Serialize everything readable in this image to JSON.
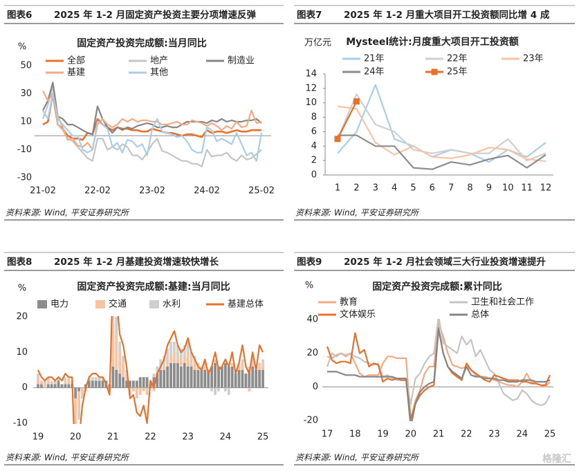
{
  "chart_data": [
    {
      "type": "line",
      "figure_label": "图表6",
      "title": "2025 年 1-2 月固定资产投资主要分项增速反弹",
      "subtitle": "固定资产投资完成额:当月同比",
      "y_unit": "%",
      "source": "资料来源: Wind, 平安证券研究所",
      "categories": [
        "21-02",
        null,
        null,
        null,
        null,
        null,
        null,
        null,
        null,
        null,
        null,
        "22-02",
        null,
        null,
        null,
        null,
        null,
        null,
        null,
        null,
        null,
        null,
        "23-02",
        null,
        null,
        null,
        null,
        null,
        null,
        null,
        null,
        null,
        null,
        "24-02",
        null,
        null,
        null,
        null,
        null,
        null,
        null,
        null,
        null,
        null,
        "25-02"
      ],
      "ylim": [
        -30,
        50
      ],
      "yticks": [
        -30,
        -10,
        10,
        30,
        50
      ],
      "series": [
        {
          "name": "全部",
          "color": "#e8702a",
          "values": [
            8,
            10,
            30,
            8,
            5,
            0,
            -2,
            -2,
            -3,
            2,
            1,
            12,
            8,
            6,
            4,
            6,
            5,
            5,
            4,
            4,
            3,
            3,
            5,
            4,
            3,
            2,
            2,
            1,
            0,
            1,
            1,
            0,
            -1,
            4,
            2,
            3,
            3,
            2,
            3,
            4,
            3,
            3,
            4,
            4,
            4
          ]
        },
        {
          "name": "地产",
          "color": "#c4c4c4",
          "values": [
            12,
            22,
            35,
            8,
            4,
            -2,
            -4,
            -8,
            -12,
            -16,
            -18,
            -2,
            -2,
            -10,
            -8,
            -10,
            -6,
            -8,
            -14,
            -14,
            -17,
            -12,
            -6,
            -2,
            -11,
            -12,
            -14,
            -16,
            -18,
            -18,
            -20,
            -20,
            -22,
            -10,
            -15,
            -14,
            -14,
            -12,
            -16,
            -18,
            -14,
            -17,
            -16,
            -13,
            -10
          ]
        },
        {
          "name": "制造业",
          "color": "#848484",
          "values": [
            18,
            25,
            38,
            14,
            12,
            8,
            8,
            6,
            4,
            2,
            1,
            21,
            12,
            6,
            2,
            6,
            4,
            6,
            5,
            7,
            8,
            9,
            8,
            6,
            6,
            7,
            6,
            6,
            8,
            10,
            10,
            10,
            10,
            9,
            11,
            10,
            12,
            10,
            11,
            10,
            10,
            11,
            11,
            12,
            9
          ]
        },
        {
          "name": "基建",
          "color": "#f4a983",
          "values": [
            32,
            25,
            30,
            14,
            6,
            -3,
            -2,
            -7,
            -8,
            -5,
            -10,
            8,
            12,
            8,
            6,
            8,
            12,
            10,
            12,
            10,
            11,
            11,
            10,
            10,
            8,
            8,
            9,
            10,
            8,
            8,
            11,
            10,
            9,
            7,
            9,
            7,
            4,
            7,
            5,
            10,
            6,
            7,
            18,
            9,
            10
          ]
        },
        {
          "name": "其他",
          "color": "#a9cde9",
          "values": [
            18,
            12,
            30,
            12,
            8,
            4,
            0,
            0,
            -10,
            -12,
            -10,
            10,
            8,
            5,
            -8,
            -5,
            -12,
            -3,
            -4,
            -8,
            -6,
            -14,
            5,
            12,
            3,
            2,
            1,
            -1,
            0,
            -4,
            -10,
            -12,
            -12,
            6,
            4,
            -4,
            -2,
            -4,
            -6,
            2,
            -6,
            -14,
            -12,
            -18,
            2
          ]
        }
      ]
    },
    {
      "type": "line",
      "figure_label": "图表7",
      "title": "2025 年 1-2 月重大项目开工投资额同比增 4 成",
      "subtitle": "Mysteel统计:月度重大项目开工投资额",
      "y_unit": "万亿元",
      "source": "资料来源: Wind, 平安证券研究所",
      "categories": [
        "1",
        "2",
        "3",
        "4",
        "5",
        "6",
        "7",
        "8",
        "9",
        "10",
        "11",
        "12"
      ],
      "ylim": [
        0,
        14
      ],
      "yticks": [
        0,
        2,
        4,
        6,
        8,
        10,
        12,
        14
      ],
      "series": [
        {
          "name": "21年",
          "color": "#a9cde9",
          "values": [
            3,
            6,
            12.5,
            5,
            4,
            2.5,
            3.5,
            3,
            1.8,
            3.5,
            2.5,
            4.5
          ]
        },
        {
          "name": "22年",
          "color": "#cfcfcf",
          "values": [
            5,
            11.2,
            7,
            6,
            3.5,
            3,
            3.5,
            3,
            3,
            5,
            2,
            3
          ]
        },
        {
          "name": "23年",
          "color": "#f7c3a3",
          "values": [
            9.5,
            9.2,
            4.5,
            2.8,
            4,
            2.5,
            2.3,
            2.8,
            3.8,
            3.5,
            2.2,
            1.9
          ]
        },
        {
          "name": "24年",
          "color": "#8c8c8c",
          "values": [
            5.5,
            5.5,
            4,
            4,
            1,
            0.8,
            1.8,
            1.4,
            2.2,
            2.7,
            1,
            2.8
          ]
        },
        {
          "name": "25年",
          "color": "#e8702a",
          "marker": "square",
          "values": [
            5,
            10.2,
            null,
            null,
            null,
            null,
            null,
            null,
            null,
            null,
            null,
            null
          ]
        }
      ]
    },
    {
      "type": "combo",
      "stacked": true,
      "figure_label": "图表8",
      "title": "2025 年 1-2 月基建投资增速较快增长",
      "subtitle": "固定资产投资完成额:基建:当月同比",
      "y_unit": "%",
      "source": "资料来源: Wind, 平安证券研究所",
      "categories": [
        "19",
        null,
        null,
        null,
        null,
        null,
        null,
        null,
        null,
        null,
        null,
        "20",
        null,
        null,
        null,
        null,
        null,
        null,
        null,
        null,
        null,
        null,
        "21",
        null,
        null,
        null,
        null,
        null,
        null,
        null,
        null,
        null,
        null,
        "22",
        null,
        null,
        null,
        null,
        null,
        null,
        null,
        null,
        null,
        null,
        "23",
        null,
        null,
        null,
        null,
        null,
        null,
        null,
        null,
        null,
        null,
        "24",
        null,
        null,
        null,
        null,
        null,
        null,
        null,
        null,
        null,
        null,
        "25"
      ],
      "ylim": [
        -10,
        20
      ],
      "yticks": [
        -10,
        0,
        10,
        20
      ],
      "series": [
        {
          "name": "电力",
          "type": "bar",
          "color": "#8c8c8c",
          "values": [
            1,
            1,
            0,
            1,
            1,
            1,
            2,
            1,
            1,
            1,
            1,
            -3,
            -1,
            0,
            1,
            2,
            2,
            2,
            2,
            2,
            2,
            1,
            6,
            5,
            4,
            3,
            2,
            2,
            2,
            2,
            3,
            3,
            3,
            1,
            3,
            4,
            5,
            5,
            6,
            7,
            7,
            7,
            6,
            7,
            6,
            6,
            5,
            5,
            5,
            5,
            5,
            6,
            7,
            6,
            6,
            7,
            6,
            6,
            4,
            5,
            5,
            4,
            5,
            6,
            5,
            5,
            5
          ]
        },
        {
          "name": "交通",
          "type": "bar",
          "color": "#f7c3a3",
          "values": [
            2,
            1,
            1,
            1,
            1,
            0,
            0,
            0,
            1,
            1,
            0,
            -8,
            -5,
            -2,
            -1,
            0,
            0,
            0,
            0,
            0,
            0,
            -1,
            12,
            10,
            6,
            4,
            2,
            -2,
            -1,
            -2,
            -2,
            -1,
            -2,
            0,
            -1,
            0,
            0,
            1,
            2,
            2,
            3,
            2,
            2,
            2,
            4,
            2,
            2,
            1,
            0,
            1,
            0,
            0,
            1,
            0,
            0,
            0,
            0,
            1,
            0,
            1,
            2,
            0,
            -1,
            1,
            0,
            1,
            2
          ]
        },
        {
          "name": "水利",
          "type": "bar",
          "color": "#cfcfcf",
          "values": [
            1,
            0,
            1,
            1,
            0,
            1,
            1,
            0,
            1,
            1,
            1,
            -4,
            -3,
            -1,
            0,
            1,
            1,
            1,
            1,
            1,
            0,
            0,
            6,
            5,
            3,
            2,
            1,
            0,
            0,
            -1,
            0,
            0,
            0,
            1,
            1,
            2,
            3,
            3,
            3,
            4,
            3,
            3,
            3,
            3,
            3,
            2,
            2,
            1,
            1,
            1,
            0,
            -1,
            -2,
            -1,
            0,
            -1,
            -2,
            0,
            1,
            1,
            1,
            0,
            1,
            2,
            1,
            1,
            1
          ]
        },
        {
          "name": "基建总体",
          "type": "line",
          "color": "#e8702a",
          "values": [
            5,
            3,
            2,
            3,
            3,
            2,
            3,
            2,
            4,
            3,
            3,
            -25,
            -15,
            -5,
            0,
            3,
            4,
            4,
            3,
            3,
            1,
            -2,
            32,
            25,
            15,
            12,
            6,
            -3,
            -2,
            -7,
            -8,
            -5,
            -10,
            2,
            0,
            4,
            6,
            8,
            12,
            14,
            16,
            12,
            10,
            11,
            14,
            10,
            8,
            6,
            5,
            8,
            4,
            6,
            10,
            5,
            6,
            8,
            6,
            10,
            4,
            7,
            12,
            6,
            4,
            10,
            5,
            12,
            10
          ]
        }
      ]
    },
    {
      "type": "line",
      "figure_label": "图表9",
      "title": "2025 年 1-2 月社会领域三大行业投资增速提升",
      "subtitle": "固定资产投资完成额:累计同比",
      "y_unit": "%",
      "source": "资料来源: Wind, 平安证券研究所",
      "categories": [
        "17",
        null,
        null,
        null,
        null,
        null,
        "18",
        null,
        null,
        null,
        null,
        null,
        "19",
        null,
        null,
        null,
        null,
        null,
        "20",
        null,
        null,
        null,
        null,
        null,
        "21",
        null,
        null,
        null,
        null,
        null,
        "22",
        null,
        null,
        null,
        null,
        null,
        "23",
        null,
        null,
        null,
        null,
        null,
        "24",
        null,
        null,
        null,
        null,
        null,
        "25"
      ],
      "ylim": [
        -20,
        40
      ],
      "yticks": [
        -20,
        0,
        20,
        40
      ],
      "series": [
        {
          "name": "教育",
          "color": "#f4a983",
          "values": [
            18,
            17,
            19,
            20,
            18,
            20,
            14,
            8,
            6,
            7,
            7,
            7,
            14,
            18,
            18,
            17,
            17,
            17,
            -20,
            -8,
            -2,
            8,
            12,
            12,
            38,
            30,
            20,
            13,
            12,
            11,
            12,
            10,
            7,
            6,
            6,
            5,
            4,
            3,
            2,
            1,
            1,
            0,
            3,
            8,
            3,
            2,
            1,
            0,
            3
          ]
        },
        {
          "name": "卫生和社会工作",
          "color": "#c4c4c4",
          "values": [
            12,
            20,
            18,
            20,
            19,
            20,
            18,
            17,
            15,
            14,
            13,
            14,
            6,
            7,
            5,
            4,
            4,
            4,
            -10,
            5,
            8,
            14,
            18,
            20,
            42,
            26,
            24,
            22,
            20,
            30,
            25,
            28,
            18,
            22,
            16,
            10,
            8,
            2,
            -4,
            -6,
            -8,
            -7,
            -2,
            -4,
            -8,
            -10,
            -11,
            -10,
            -5
          ]
        },
        {
          "name": "文体娱乐",
          "color": "#e8702a",
          "values": [
            24,
            16,
            14,
            15,
            15,
            14,
            32,
            20,
            22,
            12,
            14,
            13,
            3,
            5,
            4,
            5,
            4,
            4,
            -19,
            -10,
            -5,
            -2,
            0,
            1,
            34,
            20,
            12,
            8,
            6,
            4,
            14,
            10,
            8,
            6,
            4,
            3,
            7,
            6,
            5,
            4,
            4,
            4,
            3,
            3,
            2,
            2,
            1,
            1,
            7
          ]
        },
        {
          "name": "总体",
          "color": "#848484",
          "values": [
            9,
            9,
            9,
            8,
            7,
            7,
            7,
            6,
            6,
            6,
            6,
            6,
            6,
            6,
            6,
            5,
            5,
            5,
            -24,
            -10,
            -3,
            0,
            2,
            3,
            35,
            20,
            12,
            9,
            7,
            5,
            12,
            7,
            6,
            6,
            5,
            5,
            5,
            4,
            4,
            3,
            3,
            3,
            4,
            4,
            4,
            3,
            3,
            3,
            4
          ]
        }
      ]
    }
  ],
  "watermark": "格隆汇"
}
